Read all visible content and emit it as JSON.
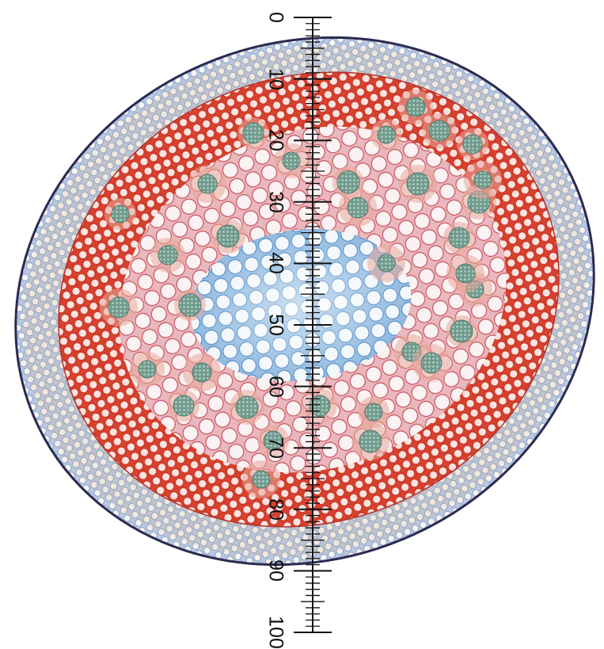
{
  "image": {
    "subject": "stem cross-section micrograph",
    "colors": {
      "background": "#ffffff",
      "epidermis": "#2b2a52",
      "outer_cortex_blue": "#9fb6d6",
      "outer_cortex_tan": "#d8b48a",
      "red_tissue": "#d8412e",
      "pale_cells": "#f6e9ea",
      "central_blue_cells": "#7fb2dd",
      "vascular_bundle": "#6f9a8c",
      "ruler_ink": "#111111"
    }
  },
  "ruler": {
    "tick_labels": [
      "0",
      "10",
      "20",
      "30",
      "40",
      "50",
      "60",
      "70",
      "80",
      "90",
      "100"
    ]
  }
}
